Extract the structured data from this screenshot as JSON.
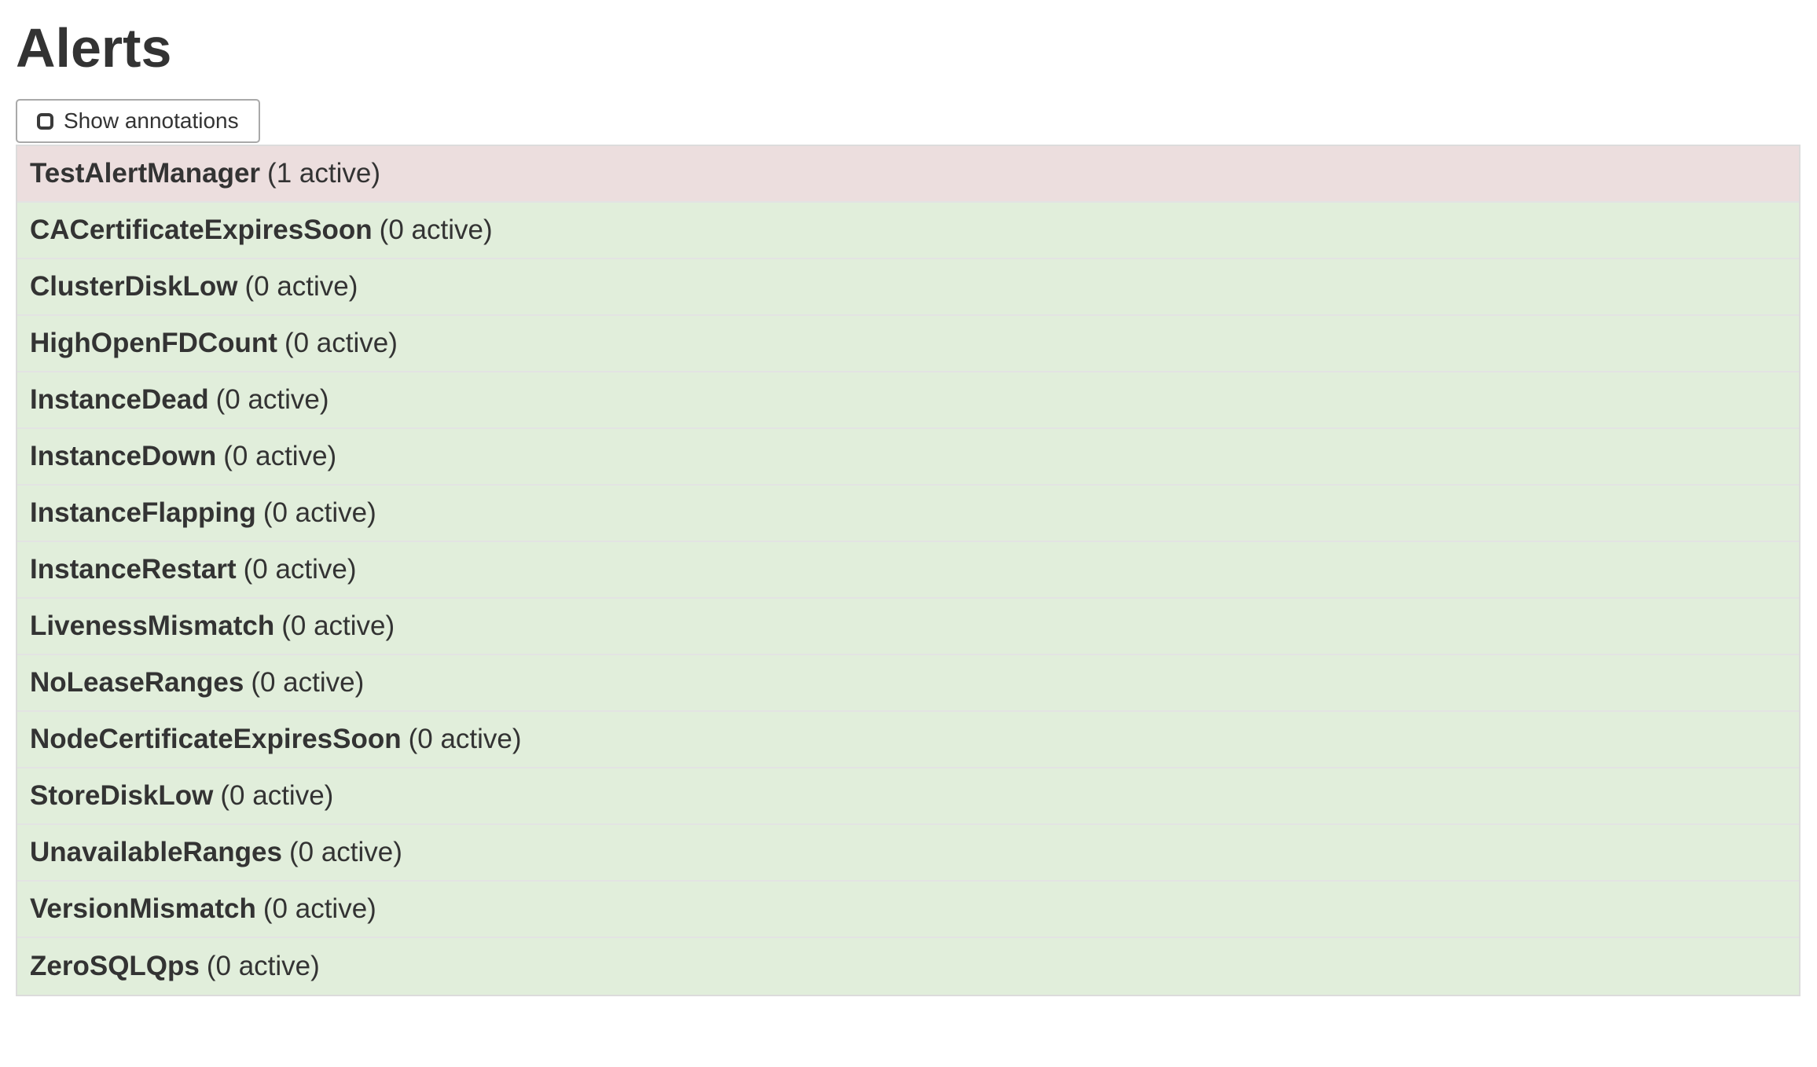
{
  "page": {
    "title": "Alerts"
  },
  "toolbar": {
    "show_annotations": {
      "label": "Show annotations",
      "checked": false
    }
  },
  "alerts": [
    {
      "name": "TestAlertManager",
      "active_count": 1,
      "count_label": "(1 active)",
      "state": "firing"
    },
    {
      "name": "CACertificateExpiresSoon",
      "active_count": 0,
      "count_label": "(0 active)",
      "state": "inactive"
    },
    {
      "name": "ClusterDiskLow",
      "active_count": 0,
      "count_label": "(0 active)",
      "state": "inactive"
    },
    {
      "name": "HighOpenFDCount",
      "active_count": 0,
      "count_label": "(0 active)",
      "state": "inactive"
    },
    {
      "name": "InstanceDead",
      "active_count": 0,
      "count_label": "(0 active)",
      "state": "inactive"
    },
    {
      "name": "InstanceDown",
      "active_count": 0,
      "count_label": "(0 active)",
      "state": "inactive"
    },
    {
      "name": "InstanceFlapping",
      "active_count": 0,
      "count_label": "(0 active)",
      "state": "inactive"
    },
    {
      "name": "InstanceRestart",
      "active_count": 0,
      "count_label": "(0 active)",
      "state": "inactive"
    },
    {
      "name": "LivenessMismatch",
      "active_count": 0,
      "count_label": "(0 active)",
      "state": "inactive"
    },
    {
      "name": "NoLeaseRanges",
      "active_count": 0,
      "count_label": "(0 active)",
      "state": "inactive"
    },
    {
      "name": "NodeCertificateExpiresSoon",
      "active_count": 0,
      "count_label": "(0 active)",
      "state": "inactive"
    },
    {
      "name": "StoreDiskLow",
      "active_count": 0,
      "count_label": "(0 active)",
      "state": "inactive"
    },
    {
      "name": "UnavailableRanges",
      "active_count": 0,
      "count_label": "(0 active)",
      "state": "inactive"
    },
    {
      "name": "VersionMismatch",
      "active_count": 0,
      "count_label": "(0 active)",
      "state": "inactive"
    },
    {
      "name": "ZeroSQLQps",
      "active_count": 0,
      "count_label": "(0 active)",
      "state": "inactive"
    }
  ],
  "colors": {
    "firing_bg": "#ecdede",
    "inactive_bg": "#e1eedb",
    "text": "#333333",
    "table_border": "#dcdcdc",
    "row_border": "#e3e3e3",
    "button_border": "#a9a9a9"
  }
}
